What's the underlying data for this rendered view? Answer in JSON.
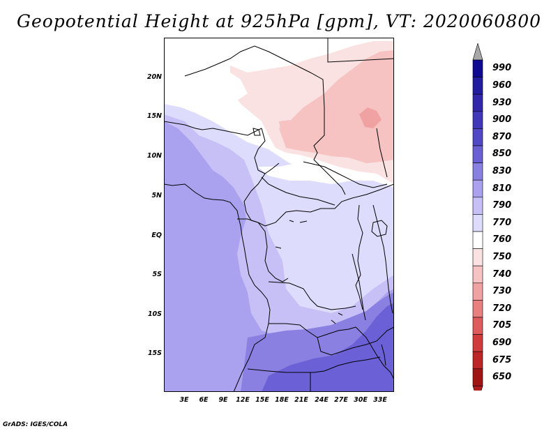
{
  "title": "Geopotential Height at 925hPa [gpm], VT: 2020060800",
  "credit": "GrADS: IGES/COLA",
  "latitude_labels": [
    "20N",
    "15N",
    "10N",
    "5N",
    "EQ",
    "5S",
    "10S",
    "15S"
  ],
  "longitude_labels": [
    "3E",
    "6E",
    "9E",
    "12E",
    "15E",
    "18E",
    "21E",
    "24E",
    "27E",
    "30E",
    "33E"
  ],
  "colorbar": {
    "levels": [
      "990",
      "960",
      "930",
      "900",
      "870",
      "850",
      "830",
      "810",
      "790",
      "770",
      "760",
      "750",
      "740",
      "730",
      "720",
      "705",
      "690",
      "675",
      "650"
    ],
    "colors": [
      "#0f0a92",
      "#221c9e",
      "#3226aa",
      "#4038b8",
      "#5148c6",
      "#6a60d4",
      "#8a80e2",
      "#aaa2ee",
      "#c6c0f6",
      "#dedcfc",
      "#ffffff",
      "#fbe2e2",
      "#f6c2c2",
      "#f0a2a2",
      "#e88080",
      "#de5c5c",
      "#d03c3c",
      "#bc2626",
      "#a01414"
    ],
    "top_arrow_color": "#a8a8a8",
    "bottom_arrow_color": "#b01c1c"
  },
  "map_colors": {
    "deep_purple": "#6c60d6",
    "purple": "#8a80e2",
    "lavender": "#aaa2ee",
    "light_lavender": "#c6c0f6",
    "pale_lavender": "#dedcfc",
    "white": "#ffffff",
    "light_pink": "#fbe2e2",
    "pink": "#f6c2c2",
    "salmon": "#f0a2a2"
  }
}
